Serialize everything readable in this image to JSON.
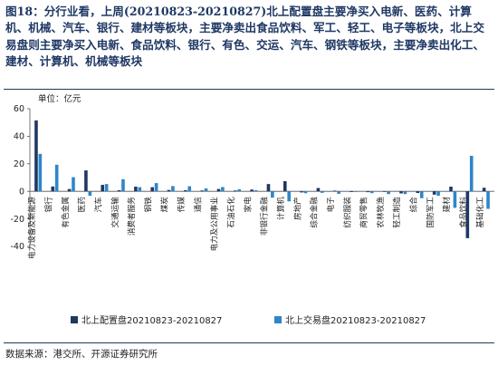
{
  "title": "图18：分行业看，上周(20210823-20210827)北上配置盘主要净买入电新、医药、计算机、机械、汽车、银行、建材等板块，主要净卖出食品饮料、军工、轻工、电子等板块，北上交易盘则主要净买入电新、食品饮料、银行、有色、交运、汽车、钢铁等板块，主要净卖出化工、建材、计算机、机械等板块",
  "unit_label": "单位：亿元",
  "source": "数据来源：港交所、开源证券研究所",
  "chart_data": {
    "type": "bar",
    "title": "",
    "xlabel": "",
    "ylabel": "单位：亿元",
    "ylim": [
      -40,
      60
    ],
    "yticks": [
      -40,
      -20,
      0,
      20,
      40,
      60
    ],
    "grid": false,
    "legend_position": "bottom",
    "categories": [
      "电力设备及新能源",
      "银行",
      "有色金属",
      "医药",
      "汽车",
      "交通运输",
      "消费者服务",
      "钢铁",
      "煤炭",
      "传媒",
      "通信",
      "电力及公用事业",
      "石油石化",
      "家电",
      "非银行金融",
      "计算机",
      "房地产",
      "综合金融",
      "电子",
      "纺织服装",
      "商贸零售",
      "农林牧渔",
      "轻工制造",
      "综合",
      "国防军工",
      "建材",
      "食品饮料",
      "基础化工"
    ],
    "series": [
      {
        "name": "北上配置盘20210823-20210827",
        "color": "#1f3864",
        "values": [
          51.5,
          3.5,
          1.7,
          15.2,
          4.7,
          0.8,
          3.4,
          3.0,
          1.0,
          0.8,
          0.6,
          1.7,
          0.6,
          1.3,
          5.3,
          7.4,
          -0.8,
          2.4,
          0.5,
          -0.5,
          -0.6,
          -0.4,
          -1.5,
          -1.2,
          -2.4,
          3.4,
          -34.0,
          2.6
        ]
      },
      {
        "name": "北上交易盘20210823-20210827",
        "color": "#2e86c9",
        "values": [
          27.2,
          19.3,
          10.3,
          -3.2,
          5.3,
          8.8,
          3.0,
          6.0,
          3.8,
          3.7,
          2.1,
          3.1,
          1.5,
          0.8,
          -4.6,
          -7.3,
          -1.4,
          -1.1,
          -1.8,
          -0.4,
          -1.3,
          -2.0,
          -2.0,
          -5.0,
          -3.2,
          -12.0,
          25.8,
          -12.7
        ]
      }
    ]
  }
}
